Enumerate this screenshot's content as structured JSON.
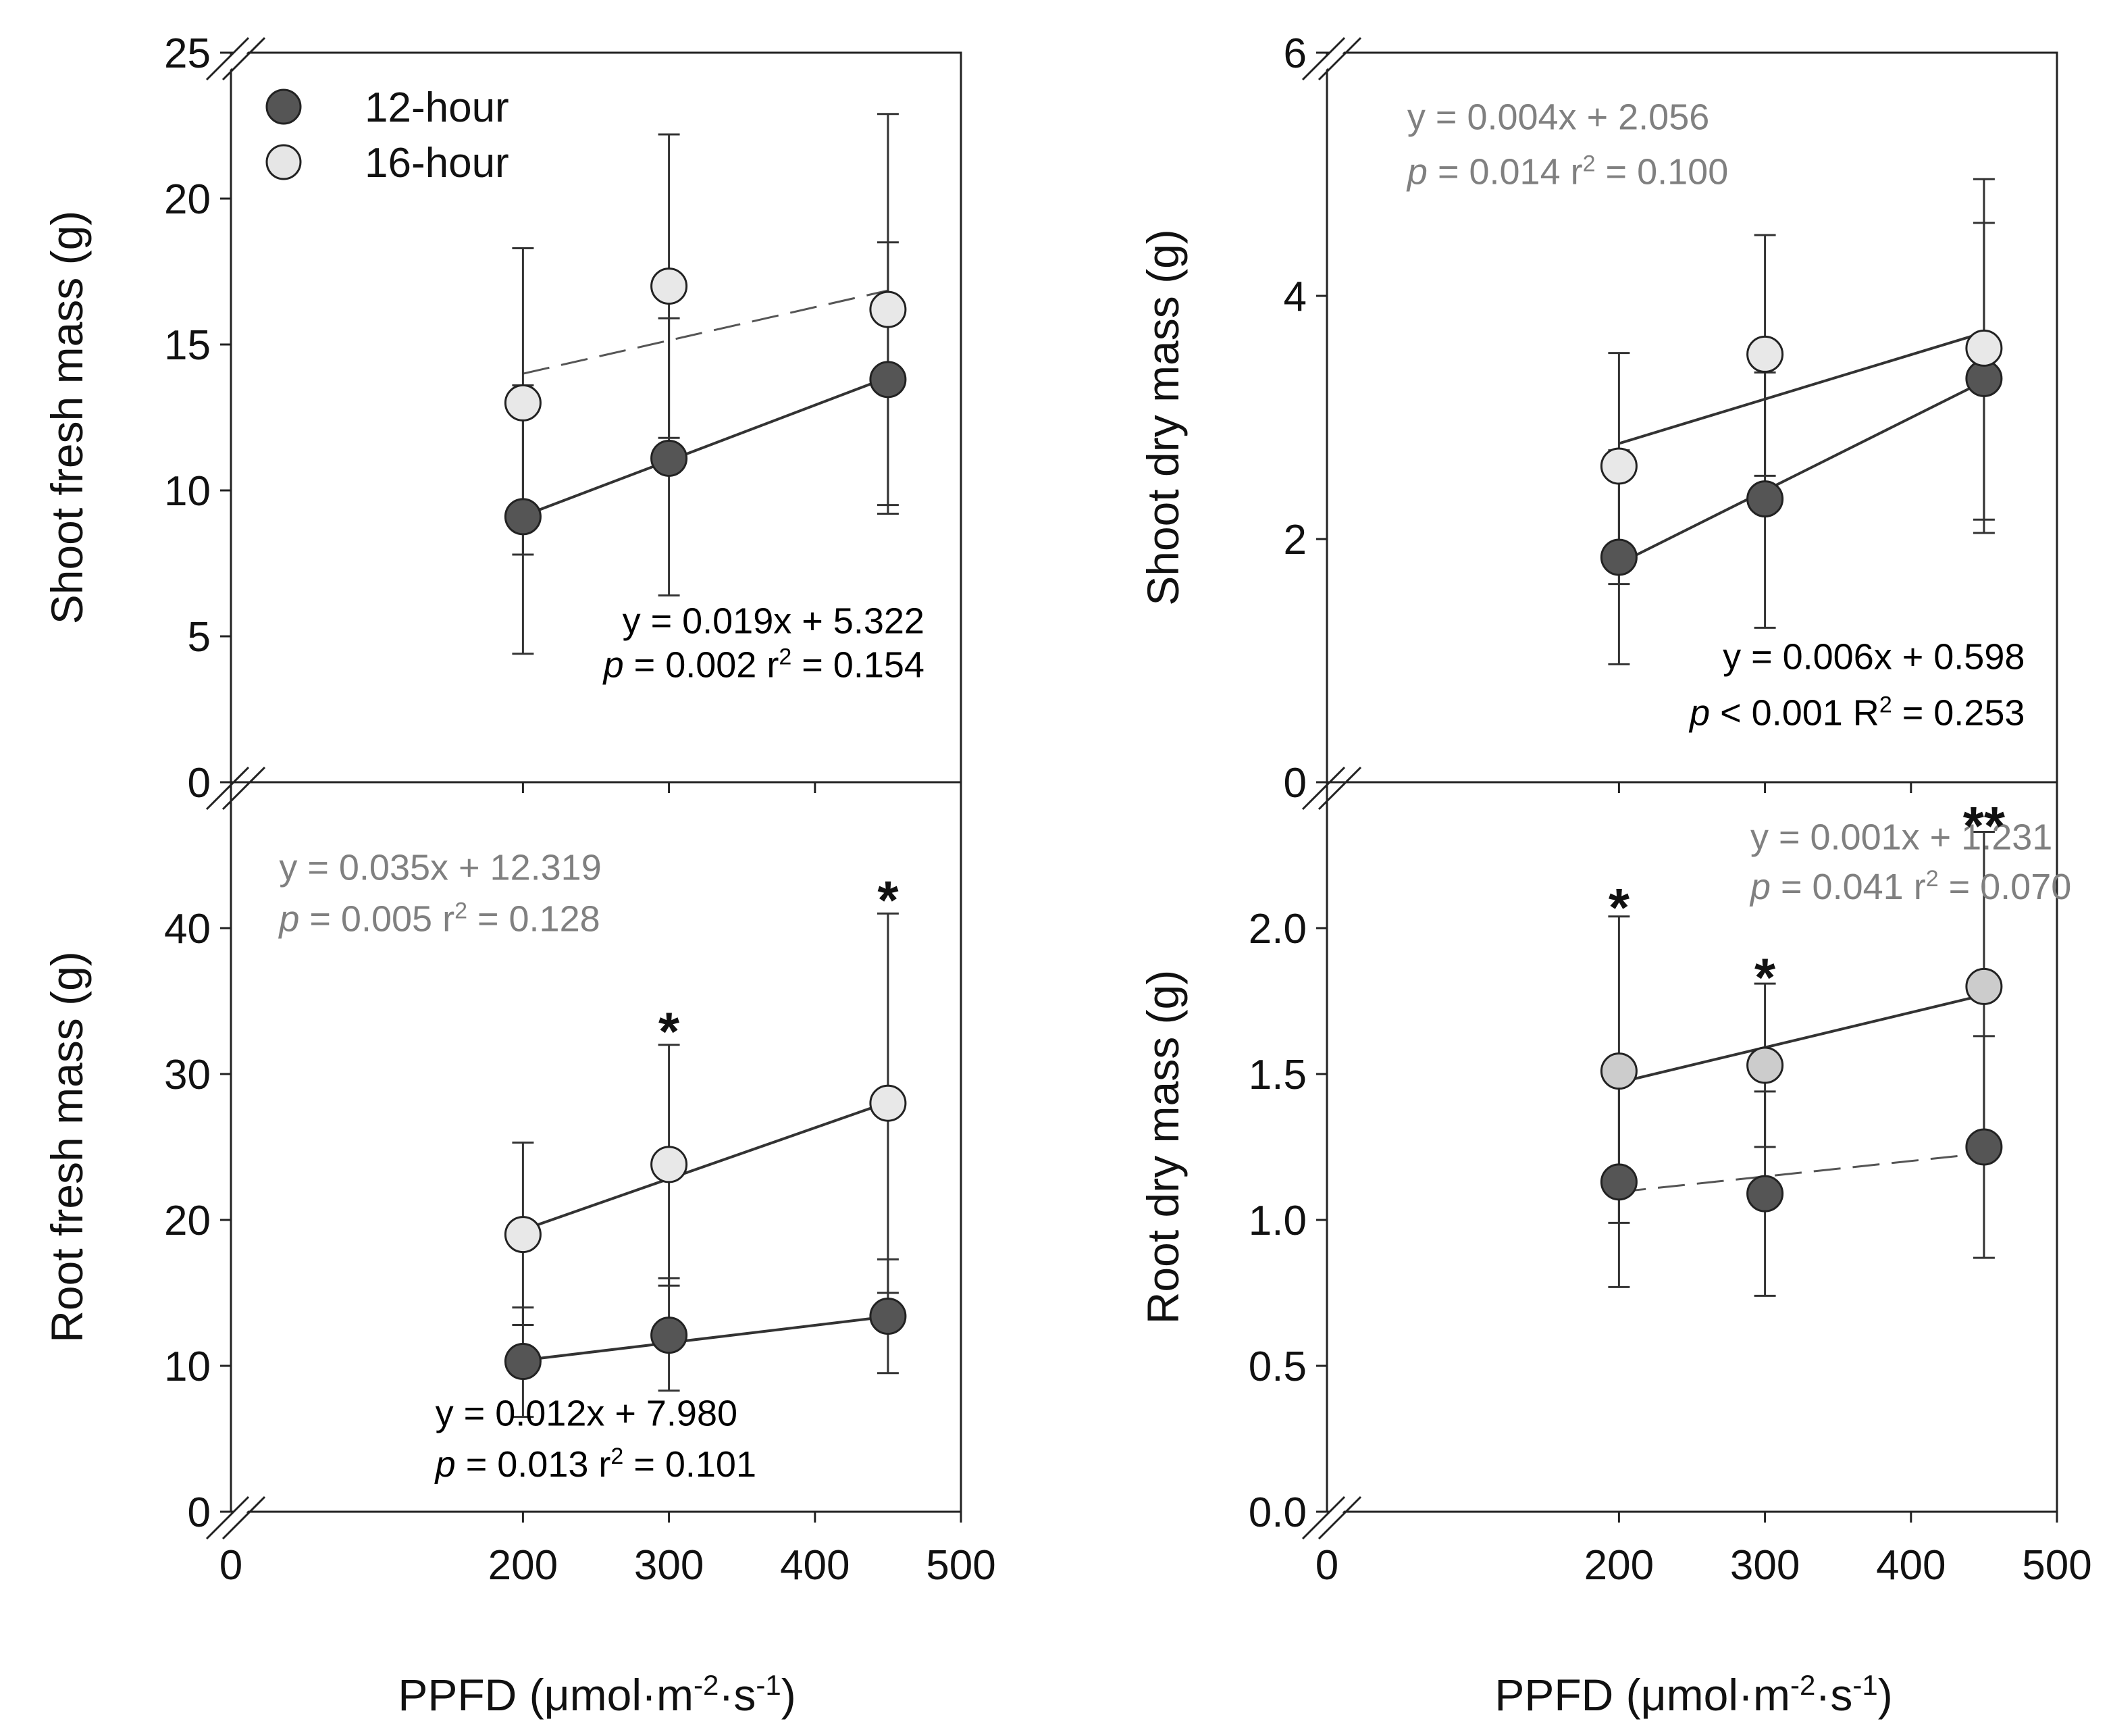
{
  "figure": {
    "xlabel_left": "PPFD (μmol·m⁻²·s⁻¹)",
    "xlabel_right": "PPFD (μmol·m⁻²·s⁻¹)",
    "xlabel_text": "PPFD (μmol·m",
    "xlabel_exp1": "-2",
    "xlabel_mid": "·s",
    "xlabel_exp2": "-1",
    "xlabel_end": ")"
  },
  "legend": {
    "items": [
      {
        "label": "12-hour",
        "color": "#555555"
      },
      {
        "label": "16-hour",
        "color": "#e6e6e6"
      }
    ]
  },
  "colors": {
    "dark_marker": "#555555",
    "light_marker": "#e8e8e8",
    "mid_marker": "#cccccc",
    "dark_eq": "#000000",
    "gray_eq": "#808080"
  },
  "chart_data": [
    {
      "id": "shoot-fresh",
      "type": "scatter",
      "ylabel": "Shoot fresh mass (g)",
      "ylim": [
        0,
        25
      ],
      "yticks": [
        0,
        5,
        10,
        15,
        20,
        25
      ],
      "ytick_labels": [
        "0",
        "5",
        "10",
        "15",
        "20",
        "25"
      ],
      "xlim": [
        0,
        500
      ],
      "xticks": [
        0,
        200,
        300,
        400,
        500
      ],
      "xtick_labels": [
        "0",
        "200",
        "300",
        "400",
        "500"
      ],
      "show_xtick_labels": false,
      "series": [
        {
          "name": "12-hour",
          "x": [
            200,
            300,
            450
          ],
          "y": [
            9.1,
            11.1,
            13.8
          ],
          "err_low": [
            4.4,
            6.4,
            9.2
          ],
          "err_high": [
            13.6,
            15.9,
            18.5
          ],
          "fill": "#555555"
        },
        {
          "name": "16-hour",
          "x": [
            200,
            300,
            450
          ],
          "y": [
            13.0,
            17.0,
            16.2
          ],
          "err_low": [
            7.8,
            11.8,
            9.5
          ],
          "err_high": [
            18.3,
            22.2,
            22.9
          ],
          "fill": "#e8e8e8"
        }
      ],
      "fits": [
        {
          "series": "12-hour",
          "slope": 0.019,
          "intercept": 5.322,
          "x_range": [
            200,
            450
          ],
          "dash": false
        },
        {
          "series": "16-hour",
          "slope": 0.0114,
          "intercept": 11.72,
          "x_range": [
            200,
            450
          ],
          "dash": true
        }
      ],
      "annotations": [
        {
          "kind": "eq",
          "tone": "dark",
          "anchor": "right",
          "ax": 475,
          "ay": 5.1,
          "text": "y = 0.019x + 5.322"
        },
        {
          "kind": "stat",
          "tone": "dark",
          "anchor": "right",
          "ax": 475,
          "ay": 3.6,
          "p": "p",
          "ptext": " = 0.002 r",
          "sup": "2",
          "rest": " = 0.154"
        }
      ],
      "stars": []
    },
    {
      "id": "shoot-dry",
      "type": "scatter",
      "ylabel": "Shoot dry mass (g)",
      "ylim": [
        0,
        6
      ],
      "yticks": [
        0,
        2,
        4,
        6
      ],
      "ytick_labels": [
        "0",
        "2",
        "4",
        "6"
      ],
      "xlim": [
        0,
        500
      ],
      "xticks": [
        0,
        200,
        300,
        400,
        500
      ],
      "xtick_labels": [
        "0",
        "200",
        "300",
        "400",
        "500"
      ],
      "show_xtick_labels": false,
      "series": [
        {
          "name": "12-hour",
          "x": [
            200,
            300,
            450
          ],
          "y": [
            1.85,
            2.33,
            3.32
          ],
          "err_low": [
            0.97,
            1.27,
            2.05
          ],
          "err_high": [
            2.73,
            3.37,
            4.6
          ],
          "fill": "#555555"
        },
        {
          "name": "16-hour",
          "x": [
            200,
            300,
            450
          ],
          "y": [
            2.6,
            3.52,
            3.57
          ],
          "err_low": [
            1.63,
            2.52,
            2.16
          ],
          "err_high": [
            3.53,
            4.5,
            4.96
          ],
          "fill": "#e8e8e8"
        }
      ],
      "fits": [
        {
          "series": "16-hour",
          "slope": 0.00365,
          "intercept": 2.056,
          "x_range": [
            200,
            450
          ],
          "dash": false
        },
        {
          "series": "12-hour",
          "slope": 0.006,
          "intercept": 0.598,
          "x_range": [
            200,
            450
          ],
          "dash": false
        }
      ],
      "annotations": [
        {
          "kind": "eq",
          "tone": "gray",
          "anchor": "left",
          "ax": 55,
          "ay": 5.37,
          "text": "y = 0.004x + 2.056"
        },
        {
          "kind": "stat",
          "tone": "gray",
          "anchor": "left",
          "ax": 55,
          "ay": 4.92,
          "p": "p",
          "ptext": " = 0.014 r",
          "sup": "2",
          "rest": " = 0.100"
        },
        {
          "kind": "eq",
          "tone": "dark",
          "anchor": "right",
          "ax": 478,
          "ay": 0.93,
          "text": "y = 0.006x + 0.598"
        },
        {
          "kind": "stat",
          "tone": "dark",
          "anchor": "right",
          "ax": 478,
          "ay": 0.47,
          "p": "p",
          "ptext": " < 0.001 R",
          "sup": "2",
          "rest": " = 0.253"
        }
      ],
      "stars": []
    },
    {
      "id": "root-fresh",
      "type": "scatter",
      "ylabel": "Root fresh mass (g)",
      "ylim": [
        0,
        50
      ],
      "yticks": [
        0,
        10,
        20,
        30,
        40
      ],
      "ytick_labels": [
        "0",
        "10",
        "20",
        "30",
        "40"
      ],
      "xlim": [
        0,
        500
      ],
      "xticks": [
        0,
        200,
        300,
        400,
        500
      ],
      "xtick_labels": [
        "0",
        "200",
        "300",
        "400",
        "500"
      ],
      "show_xtick_labels": true,
      "series": [
        {
          "name": "12-hour",
          "x": [
            200,
            300,
            450
          ],
          "y": [
            10.3,
            12.1,
            13.4
          ],
          "err_low": [
            6.5,
            8.3,
            9.5
          ],
          "err_high": [
            14.0,
            16.0,
            17.3
          ],
          "fill": "#555555"
        },
        {
          "name": "16-hour",
          "x": [
            200,
            300,
            450
          ],
          "y": [
            19.0,
            23.8,
            28.0
          ],
          "err_low": [
            12.8,
            15.5,
            15.0
          ],
          "err_high": [
            25.3,
            32.0,
            41.0
          ],
          "fill": "#e8e8e8"
        }
      ],
      "fits": [
        {
          "series": "16-hour",
          "slope": 0.035,
          "intercept": 12.319,
          "x_range": [
            200,
            450
          ],
          "dash": false
        },
        {
          "series": "12-hour",
          "slope": 0.012,
          "intercept": 7.98,
          "x_range": [
            200,
            450
          ],
          "dash": false
        }
      ],
      "annotations": [
        {
          "kind": "eq",
          "tone": "gray",
          "anchor": "left",
          "ax": 33,
          "ay": 43.3,
          "text": "y = 0.035x + 12.319"
        },
        {
          "kind": "stat",
          "tone": "gray",
          "anchor": "left",
          "ax": 33,
          "ay": 39.8,
          "p": "p",
          "ptext": " = 0.005 r",
          "sup": "2",
          "rest": " = 0.128"
        },
        {
          "kind": "eq",
          "tone": "dark",
          "anchor": "left",
          "ax": 140,
          "ay": 5.9,
          "text": "y = 0.012x + 7.980"
        },
        {
          "kind": "stat",
          "tone": "dark",
          "anchor": "left",
          "ax": 140,
          "ay": 2.4,
          "p": "p",
          "ptext": " = 0.013 r",
          "sup": "2",
          "rest": " = 0.101"
        }
      ],
      "stars": [
        {
          "x": 300,
          "y": 33.5,
          "text": "*"
        },
        {
          "x": 450,
          "y": 42.5,
          "text": "*"
        }
      ]
    },
    {
      "id": "root-dry",
      "type": "scatter",
      "ylabel": "Root dry mass (g)",
      "ylim": [
        0,
        2.5
      ],
      "yticks": [
        0,
        0.5,
        1.0,
        1.5,
        2.0
      ],
      "ytick_labels": [
        "0.0",
        "0.5",
        "1.0",
        "1.5",
        "2.0"
      ],
      "xlim": [
        0,
        500
      ],
      "xticks": [
        0,
        200,
        300,
        400,
        500
      ],
      "xtick_labels": [
        "0",
        "200",
        "300",
        "400",
        "500"
      ],
      "show_xtick_labels": true,
      "series": [
        {
          "name": "12-hour",
          "x": [
            200,
            300,
            450
          ],
          "y": [
            1.13,
            1.09,
            1.25
          ],
          "err_low": [
            0.77,
            0.74,
            0.87
          ],
          "err_high": [
            1.5,
            1.44,
            1.63
          ],
          "fill": "#555555"
        },
        {
          "name": "16-hour",
          "x": [
            200,
            300,
            450
          ],
          "y": [
            1.51,
            1.53,
            1.8
          ],
          "err_low": [
            0.99,
            1.25,
            1.27
          ],
          "err_high": [
            2.04,
            1.81,
            2.33
          ],
          "fill": "#cccccc"
        }
      ],
      "fits": [
        {
          "series": "16-hour",
          "slope": 0.0012,
          "intercept": 1.231,
          "x_range": [
            200,
            450
          ],
          "dash": false
        },
        {
          "series": "12-hour",
          "slope": 0.00053,
          "intercept": 0.99,
          "x_range": [
            200,
            450
          ],
          "dash": true
        }
      ],
      "annotations": [
        {
          "kind": "eq",
          "tone": "gray",
          "anchor": "left",
          "ax": 290,
          "ay": 2.27,
          "text": "y = 0.001x + 1.231"
        },
        {
          "kind": "stat",
          "tone": "gray",
          "anchor": "left",
          "ax": 290,
          "ay": 2.1,
          "p": "p",
          "ptext": " = 0.041 r",
          "sup": "2",
          "rest": " = 0.070"
        }
      ],
      "stars": [
        {
          "x": 200,
          "y": 2.1,
          "text": "*"
        },
        {
          "x": 300,
          "y": 1.86,
          "text": "*"
        },
        {
          "x": 450,
          "y": 2.38,
          "text": "**"
        }
      ]
    }
  ]
}
